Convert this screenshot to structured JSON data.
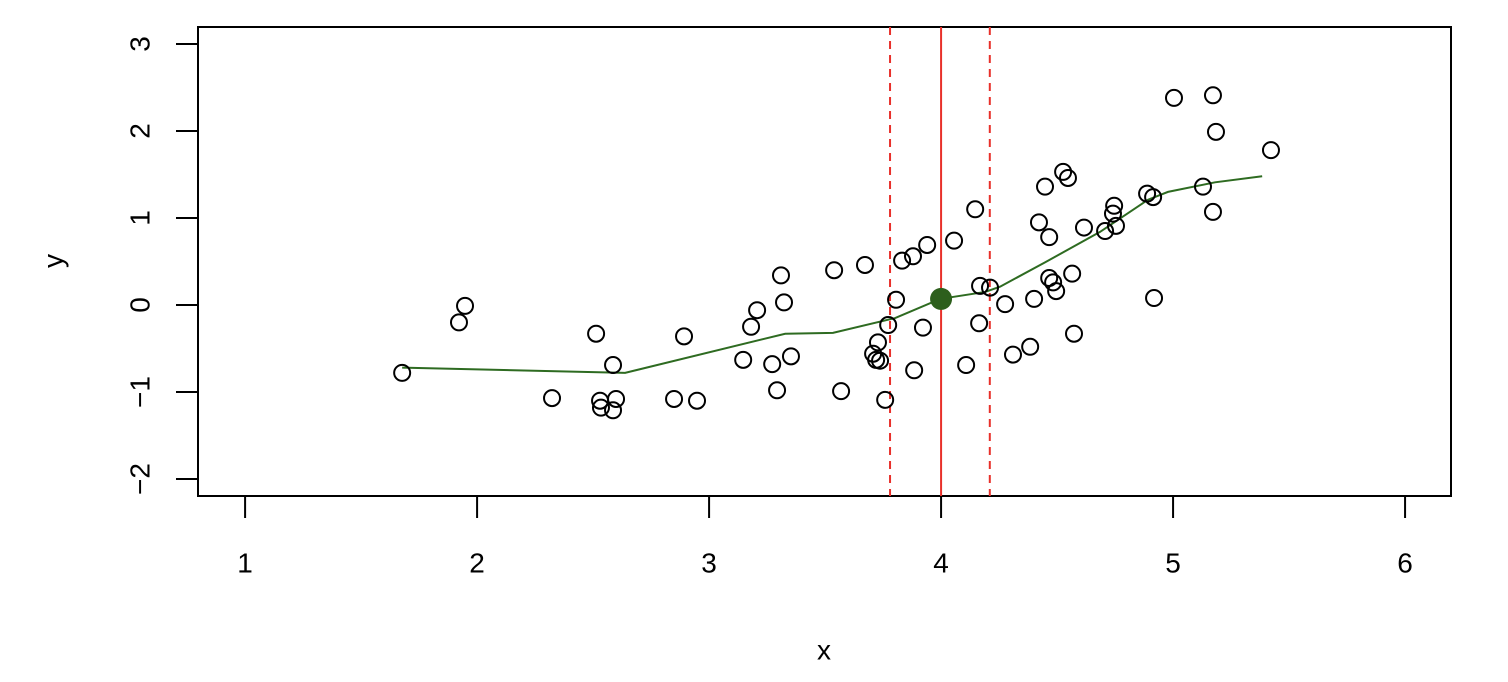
{
  "chart_data": {
    "type": "scatter",
    "xlabel": "x",
    "ylabel": "y",
    "xlim": [
      0.797,
      6.198
    ],
    "ylim": [
      -2.195,
      3.195
    ],
    "xticks": [
      1,
      2,
      3,
      4,
      5,
      6
    ],
    "yticks": [
      {
        "value": -2,
        "label": "−2"
      },
      {
        "value": -1,
        "label": "−1"
      },
      0,
      1,
      2,
      3
    ],
    "points": {
      "color": "#000000",
      "x": [
        1.677,
        1.922,
        1.948,
        2.323,
        2.513,
        2.53,
        2.534,
        2.586,
        2.599,
        2.586,
        2.849,
        2.892,
        2.948,
        3.147,
        3.181,
        3.207,
        3.272,
        3.293,
        3.31,
        3.323,
        3.353,
        3.539,
        3.569,
        3.672,
        3.707,
        3.728,
        3.72,
        3.737,
        3.759,
        3.772,
        3.806,
        3.832,
        3.879,
        3.884,
        3.922,
        3.94,
        4.056,
        4.108,
        4.147,
        4.164,
        4.168,
        4.211,
        4.276,
        4.31,
        4.384,
        4.401,
        4.422,
        4.448,
        4.466,
        4.466,
        4.483,
        4.496,
        4.526,
        4.547,
        4.565,
        4.573,
        4.616,
        4.707,
        4.741,
        4.746,
        4.754,
        4.888,
        4.914,
        4.918,
        5.004,
        5.129,
        5.172,
        5.172,
        5.185,
        5.422
      ],
      "values": [
        -0.78,
        -0.2,
        -0.01,
        -1.07,
        -0.33,
        -1.1,
        -1.18,
        -1.21,
        -1.08,
        -0.69,
        -1.08,
        -0.36,
        -1.1,
        -0.63,
        -0.25,
        -0.06,
        -0.68,
        -0.98,
        0.34,
        0.03,
        -0.59,
        0.4,
        -0.99,
        0.46,
        -0.56,
        -0.43,
        -0.63,
        -0.64,
        -1.09,
        -0.23,
        0.06,
        0.51,
        0.56,
        -0.75,
        -0.26,
        0.69,
        0.74,
        -0.69,
        1.1,
        -0.21,
        0.22,
        0.2,
        0.01,
        -0.57,
        -0.48,
        0.07,
        0.95,
        1.36,
        0.78,
        0.31,
        0.26,
        0.16,
        1.53,
        1.46,
        0.36,
        -0.33,
        0.89,
        0.85,
        1.05,
        1.14,
        0.91,
        1.28,
        1.24,
        0.08,
        2.38,
        1.36,
        2.41,
        1.07,
        1.99,
        1.78
      ]
    },
    "smooth": {
      "color": "#2e6b21",
      "x": [
        1.677,
        2.638,
        3.328,
        3.534,
        3.802,
        3.996,
        4.19,
        4.254,
        4.448,
        4.685,
        4.892,
        4.978,
        5.181,
        5.384
      ],
      "values": [
        -0.72,
        -0.78,
        -0.33,
        -0.32,
        -0.15,
        0.07,
        0.15,
        0.21,
        0.49,
        0.84,
        1.21,
        1.3,
        1.41,
        1.48
      ]
    },
    "highlight": {
      "color": "#2d5f1c",
      "x": 4,
      "value": 0.07
    },
    "vlines": {
      "color": "#e8302a",
      "center": 4,
      "bounds": [
        3.78,
        4.21
      ]
    }
  }
}
